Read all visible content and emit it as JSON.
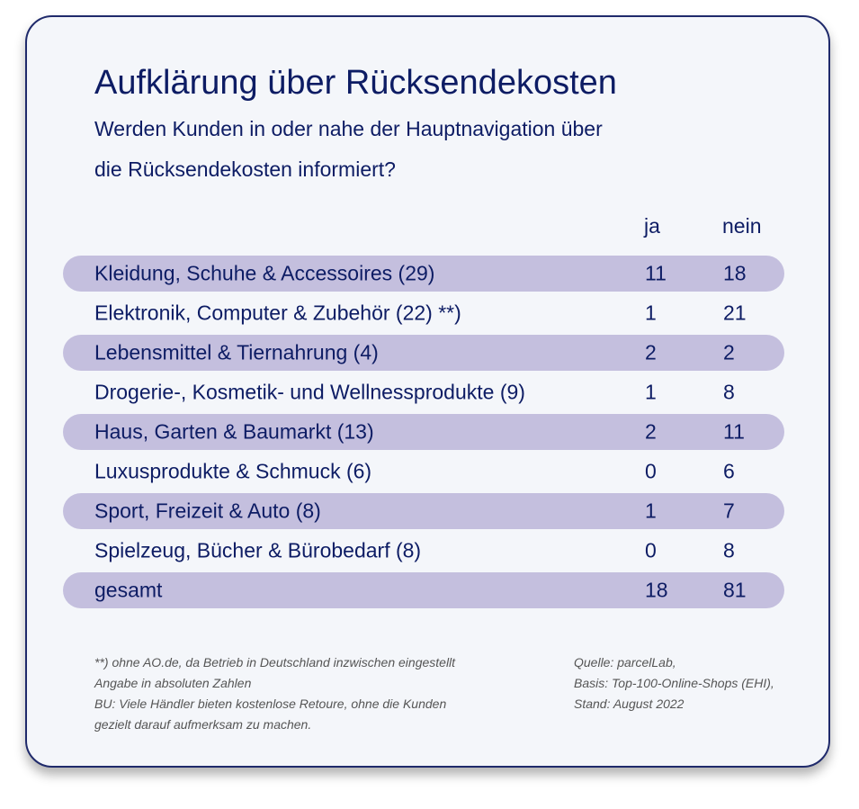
{
  "chart_data": {
    "type": "table",
    "title": "Aufklärung über Rücksendekosten",
    "subtitle_lines": [
      "Werden Kunden in oder nahe der Hauptnavigation über",
      "die Rücksendekosten informiert?"
    ],
    "columns": [
      "ja",
      "nein"
    ],
    "rows": [
      {
        "label": "Kleidung, Schuhe & Accessoires (29)",
        "ja": 11,
        "nein": 18
      },
      {
        "label": "Elektronik, Computer & Zubehör (22) **)",
        "ja": 1,
        "nein": 21
      },
      {
        "label": "Lebensmittel & Tiernahrung (4)",
        "ja": 2,
        "nein": 2
      },
      {
        "label": "Drogerie-, Kosmetik- und Wellnessprodukte (9)",
        "ja": 1,
        "nein": 8
      },
      {
        "label": "Haus, Garten & Baumarkt (13)",
        "ja": 2,
        "nein": 11
      },
      {
        "label": "Luxusprodukte & Schmuck (6)",
        "ja": 0,
        "nein": 6
      },
      {
        "label": "Sport, Freizeit & Auto (8)",
        "ja": 1,
        "nein": 7
      },
      {
        "label": "Spielzeug, Bücher & Bürobedarf (8)",
        "ja": 0,
        "nein": 8
      },
      {
        "label": "gesamt",
        "ja": 18,
        "nein": 81
      }
    ],
    "footnotes": [
      "**) ohne AO.de, da Betrieb in Deutschland inzwischen eingestellt",
      "Angabe in absoluten Zahlen",
      "BU: Viele Händler bieten kostenlose Retoure, ohne die Kunden",
      "gezielt darauf aufmerksam zu machen."
    ],
    "source_lines": [
      "Quelle: parcelLab,",
      "Basis: Top-100-Online-Shops (EHI),",
      "Stand: August 2022"
    ]
  },
  "colors": {
    "text": "#0d1c64",
    "row_shade": "#c4bfde",
    "card_border": "#1f2a6b",
    "card_background": "#f4f6fa",
    "note_text": "#555555"
  }
}
